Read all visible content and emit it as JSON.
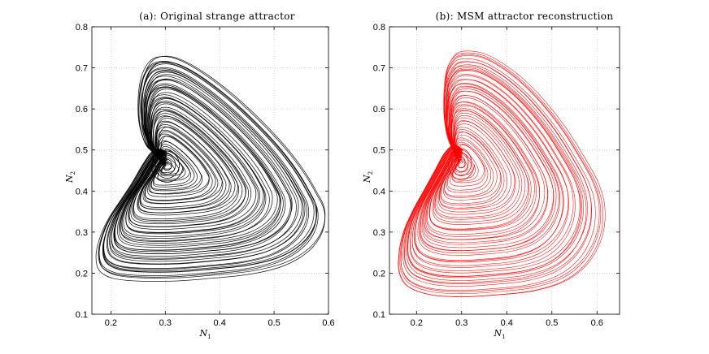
{
  "chart_data": [
    {
      "type": "line",
      "title": "(a): Original strange attractor",
      "xlabel": "N",
      "xlabel_sub": "1",
      "ylabel": "N",
      "ylabel_sub": "2",
      "xlim": [
        0.165,
        0.6
      ],
      "ylim": [
        0.1,
        0.8
      ],
      "xticks": [
        0.2,
        0.3,
        0.4,
        0.5,
        0.6
      ],
      "xtick_labels": [
        "0.2",
        "0.3",
        "0.4",
        "0.5",
        "0.6"
      ],
      "yticks": [
        0.1,
        0.2,
        0.3,
        0.4,
        0.5,
        0.6,
        0.7,
        0.8
      ],
      "ytick_labels": [
        "0.1",
        "0.2",
        "0.3",
        "0.4",
        "0.5",
        "0.6",
        "0.7",
        "0.8"
      ],
      "grid": true,
      "series": [
        {
          "name": "attractor",
          "color": "#000000",
          "center": [
            0.302,
            0.462
          ],
          "outer": [
            [
              0.3,
              0.495
            ],
            [
              0.27,
              0.51
            ],
            [
              0.255,
              0.56
            ],
            [
              0.252,
              0.62
            ],
            [
              0.258,
              0.68
            ],
            [
              0.275,
              0.72
            ],
            [
              0.3,
              0.73
            ],
            [
              0.33,
              0.72
            ],
            [
              0.37,
              0.69
            ],
            [
              0.42,
              0.64
            ],
            [
              0.47,
              0.58
            ],
            [
              0.52,
              0.51
            ],
            [
              0.555,
              0.45
            ],
            [
              0.58,
              0.395
            ],
            [
              0.595,
              0.35
            ],
            [
              0.59,
              0.3
            ],
            [
              0.565,
              0.255
            ],
            [
              0.52,
              0.22
            ],
            [
              0.46,
              0.2
            ],
            [
              0.39,
              0.19
            ],
            [
              0.32,
              0.183
            ],
            [
              0.25,
              0.183
            ],
            [
              0.205,
              0.19
            ],
            [
              0.18,
              0.21
            ],
            [
              0.175,
              0.25
            ],
            [
              0.185,
              0.3
            ],
            [
              0.2,
              0.34
            ],
            [
              0.22,
              0.38
            ],
            [
              0.24,
              0.42
            ],
            [
              0.262,
              0.47
            ],
            [
              0.28,
              0.5
            ],
            [
              0.3,
              0.495
            ]
          ],
          "loops": 60
        }
      ]
    },
    {
      "type": "line",
      "title": "(b): MSM attractor reconstruction",
      "xlabel": "N",
      "xlabel_sub": "1",
      "ylabel": "N",
      "ylabel_sub": "2",
      "xlim": [
        0.14,
        0.65
      ],
      "ylim": [
        0.1,
        0.8
      ],
      "xticks": [
        0.2,
        0.3,
        0.4,
        0.5,
        0.6
      ],
      "xtick_labels": [
        "0.2",
        "0.3",
        "0.4",
        "0.5",
        "0.6"
      ],
      "yticks": [
        0.1,
        0.2,
        0.3,
        0.4,
        0.5,
        0.6,
        0.7,
        0.8
      ],
      "ytick_labels": [
        "0.1",
        "0.2",
        "0.3",
        "0.4",
        "0.5",
        "0.6",
        "0.7",
        "0.8"
      ],
      "grid": true,
      "series": [
        {
          "name": "reconstruction",
          "color": "#ff0000",
          "center": [
            0.298,
            0.468
          ],
          "outer": [
            [
              0.3,
              0.5
            ],
            [
              0.275,
              0.52
            ],
            [
              0.262,
              0.57
            ],
            [
              0.26,
              0.63
            ],
            [
              0.265,
              0.69
            ],
            [
              0.28,
              0.725
            ],
            [
              0.3,
              0.738
            ],
            [
              0.34,
              0.735
            ],
            [
              0.38,
              0.715
            ],
            [
              0.43,
              0.675
            ],
            [
              0.48,
              0.62
            ],
            [
              0.53,
              0.55
            ],
            [
              0.57,
              0.48
            ],
            [
              0.6,
              0.42
            ],
            [
              0.615,
              0.36
            ],
            [
              0.61,
              0.29
            ],
            [
              0.58,
              0.225
            ],
            [
              0.53,
              0.18
            ],
            [
              0.46,
              0.155
            ],
            [
              0.38,
              0.145
            ],
            [
              0.3,
              0.14
            ],
            [
              0.23,
              0.145
            ],
            [
              0.18,
              0.165
            ],
            [
              0.16,
              0.2
            ],
            [
              0.16,
              0.25
            ],
            [
              0.17,
              0.3
            ],
            [
              0.19,
              0.35
            ],
            [
              0.215,
              0.4
            ],
            [
              0.24,
              0.45
            ],
            [
              0.26,
              0.49
            ],
            [
              0.28,
              0.51
            ],
            [
              0.3,
              0.5
            ]
          ],
          "loops": 55
        }
      ]
    }
  ]
}
